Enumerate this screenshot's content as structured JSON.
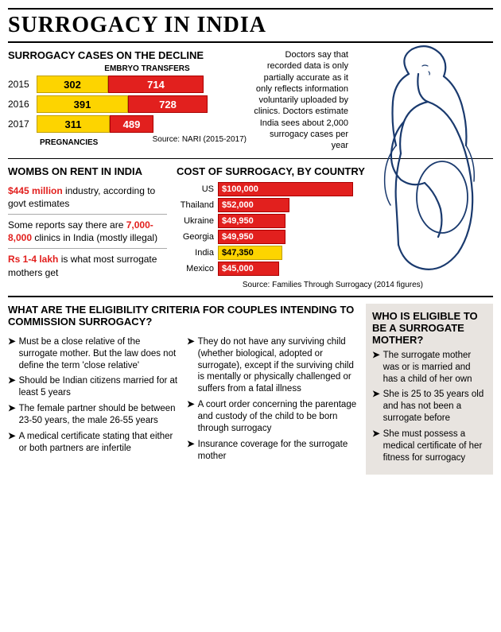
{
  "main_title": "SURROGACY IN INDIA",
  "decline": {
    "title": "SURROGACY CASES ON THE DECLINE",
    "top_label": "EMBRYO TRANSFERS",
    "bottom_label": "PREGNANCIES",
    "rows": [
      {
        "year": "2015",
        "pregnancies": 302,
        "transfers": 714,
        "y_width": 90,
        "r_width": 120
      },
      {
        "year": "2016",
        "pregnancies": 391,
        "transfers": 728,
        "y_width": 115,
        "r_width": 100
      },
      {
        "year": "2017",
        "pregnancies": 311,
        "transfers": 489,
        "y_width": 92,
        "r_width": 55
      }
    ],
    "source": "Source: NARI (2015-2017)"
  },
  "note": "Doctors say that recorded data is only partially accurate as it only reflects information voluntarily uploaded by clinics. Doctors estimate India sees about 2,000 surrogacy cases per year",
  "wombs": {
    "title": "WOMBS ON RENT IN INDIA",
    "facts": [
      {
        "highlight": "$445 million",
        "rest": " industry, according to govt estimates"
      },
      {
        "pre": "Some reports say there are ",
        "highlight": "7,000-8,000",
        "rest": " clinics in India (mostly illegal)"
      },
      {
        "highlight": "Rs 1-4 lakh",
        "rest": " is what most surrogate mothers get"
      }
    ]
  },
  "cost": {
    "title": "COST OF SURROGACY, BY COUNTRY",
    "max": 100000,
    "rows": [
      {
        "country": "US",
        "value": "$100,000",
        "width": 170,
        "highlight": false
      },
      {
        "country": "Thailand",
        "value": "$52,000",
        "width": 90,
        "highlight": false
      },
      {
        "country": "Ukraine",
        "value": "$49,950",
        "width": 85,
        "highlight": false
      },
      {
        "country": "Georgia",
        "value": "$49,950",
        "width": 85,
        "highlight": false
      },
      {
        "country": "India",
        "value": "$47,350",
        "width": 81,
        "highlight": true
      },
      {
        "country": "Mexico",
        "value": "$45,000",
        "width": 77,
        "highlight": false
      }
    ],
    "source": "Source: Families Through Surrogacy (2014 figures)"
  },
  "criteria": {
    "title": "WHAT ARE THE ELIGIBILITY CRITERIA FOR COUPLES INTENDING TO COMMISSION SURROGACY?",
    "col1": [
      "Must be a close relative of the surrogate mother. But the law does not define the term 'close relative'",
      "Should be Indian citizens married for at least 5 years",
      "The female partner should be between 23-50 years, the male 26-55 years",
      "A medical certificate stating that either or both partners are infertile"
    ],
    "col2": [
      "They do not have any surviving child (whether biological, adopted or surrogate), except if the surviving child is mentally or physically challenged or suffers from a fatal illness",
      "A court order concerning the parentage and custody of the child to be born through surrogacy",
      "Insurance coverage for the surrogate mother"
    ]
  },
  "eligible": {
    "title": "WHO IS ELIGIBLE TO BE A SURROGATE MOTHER?",
    "items": [
      "The surrogate mother was or is married and has a child of her own",
      "She is 25 to 35 years old and has not been a surrogate before",
      "She must possess a medical certificate of her fitness for surrogacy"
    ]
  },
  "colors": {
    "yellow": "#fdd400",
    "red": "#e2201e",
    "grey_bg": "#e8e4e0"
  }
}
